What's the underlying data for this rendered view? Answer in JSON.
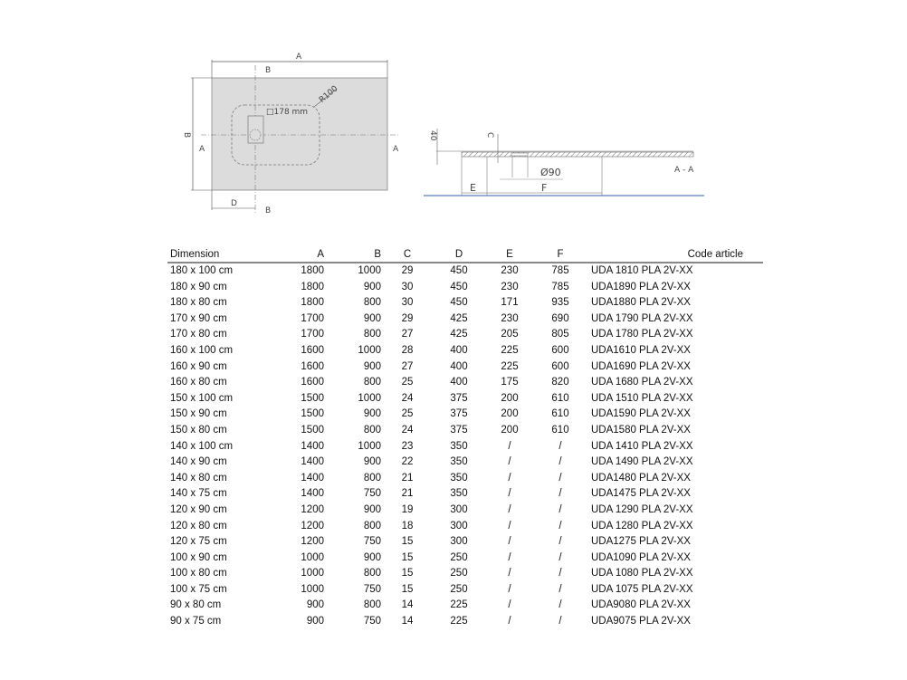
{
  "drawing": {
    "plan_labels": {
      "a": "A",
      "b": "B",
      "d": "D",
      "section_b": "B",
      "section_a": "A",
      "radius": "R100",
      "drain": "□178 mm"
    },
    "section_labels": {
      "height": "40",
      "c": "C",
      "e": "E",
      "f": "F",
      "diameter": "Ø90",
      "section": "A - A"
    },
    "colors": {
      "tray_fill": "#dcdcdc",
      "line": "#555555",
      "baseline": "#2a62b0"
    }
  },
  "table": {
    "headers": [
      "Dimension",
      "A",
      "B",
      "C",
      "D",
      "E",
      "F",
      "Code article"
    ],
    "rows": [
      [
        "180 x 100 cm",
        "1800",
        "1000",
        "29",
        "450",
        "230",
        "785",
        "UDA 1810 PLA 2V-XX"
      ],
      [
        "180 x 90 cm",
        "1800",
        "900",
        "30",
        "450",
        "230",
        "785",
        "UDA1890 PLA 2V-XX"
      ],
      [
        "180 x 80 cm",
        "1800",
        "800",
        "30",
        "450",
        "171",
        "935",
        "UDA1880 PLA 2V-XX"
      ],
      [
        "170 x 90 cm",
        "1700",
        "900",
        "29",
        "425",
        "230",
        "690",
        "UDA 1790 PLA 2V-XX"
      ],
      [
        "170 x 80 cm",
        "1700",
        "800",
        "27",
        "425",
        "205",
        "805",
        "UDA 1780 PLA 2V-XX"
      ],
      [
        "160 x 100 cm",
        "1600",
        "1000",
        "28",
        "400",
        "225",
        "600",
        "UDA1610 PLA 2V-XX"
      ],
      [
        "160 x 90 cm",
        "1600",
        "900",
        "27",
        "400",
        "225",
        "600",
        "UDA1690 PLA 2V-XX"
      ],
      [
        "160 x 80 cm",
        "1600",
        "800",
        "25",
        "400",
        "175",
        "820",
        "UDA 1680 PLA 2V-XX"
      ],
      [
        "150 x 100 cm",
        "1500",
        "1000",
        "24",
        "375",
        "200",
        "610",
        "UDA 1510 PLA 2V-XX"
      ],
      [
        "150 x 90 cm",
        "1500",
        "900",
        "25",
        "375",
        "200",
        "610",
        "UDA1590 PLA 2V-XX"
      ],
      [
        "150 x 80 cm",
        "1500",
        "800",
        "24",
        "375",
        "200",
        "610",
        "UDA1580 PLA 2V-XX"
      ],
      [
        "140 x 100 cm",
        "1400",
        "1000",
        "23",
        "350",
        "/",
        "/",
        "UDA 1410 PLA 2V-XX"
      ],
      [
        "140 x 90 cm",
        "1400",
        "900",
        "22",
        "350",
        "/",
        "/",
        "UDA 1490 PLA 2V-XX"
      ],
      [
        "140 x 80 cm",
        "1400",
        "800",
        "21",
        "350",
        "/",
        "/",
        "UDA1480 PLA 2V-XX"
      ],
      [
        "140 x 75 cm",
        "1400",
        "750",
        "21",
        "350",
        "/",
        "/",
        "UDA1475 PLA 2V-XX"
      ],
      [
        "120 x 90 cm",
        "1200",
        "900",
        "19",
        "300",
        "/",
        "/",
        "UDA 1290 PLA 2V-XX"
      ],
      [
        "120 x 80 cm",
        "1200",
        "800",
        "18",
        "300",
        "/",
        "/",
        "UDA 1280 PLA 2V-XX"
      ],
      [
        "120 x 75 cm",
        "1200",
        "750",
        "15",
        "300",
        "/",
        "/",
        "UDA1275 PLA 2V-XX"
      ],
      [
        "100 x 90 cm",
        "1000",
        "900",
        "15",
        "250",
        "/",
        "/",
        "UDA1090 PLA 2V-XX"
      ],
      [
        "100 x 80 cm",
        "1000",
        "800",
        "15",
        "250",
        "/",
        "/",
        "UDA 1080 PLA 2V-XX"
      ],
      [
        "100 x 75 cm",
        "1000",
        "750",
        "15",
        "250",
        "/",
        "/",
        "UDA 1075 PLA 2V-XX"
      ],
      [
        "90 x 80 cm",
        "900",
        "800",
        "14",
        "225",
        "/",
        "/",
        "UDA9080 PLA 2V-XX"
      ],
      [
        "90 x 75 cm",
        "900",
        "750",
        "14",
        "225",
        "/",
        "/",
        "UDA9075 PLA 2V-XX"
      ]
    ]
  }
}
